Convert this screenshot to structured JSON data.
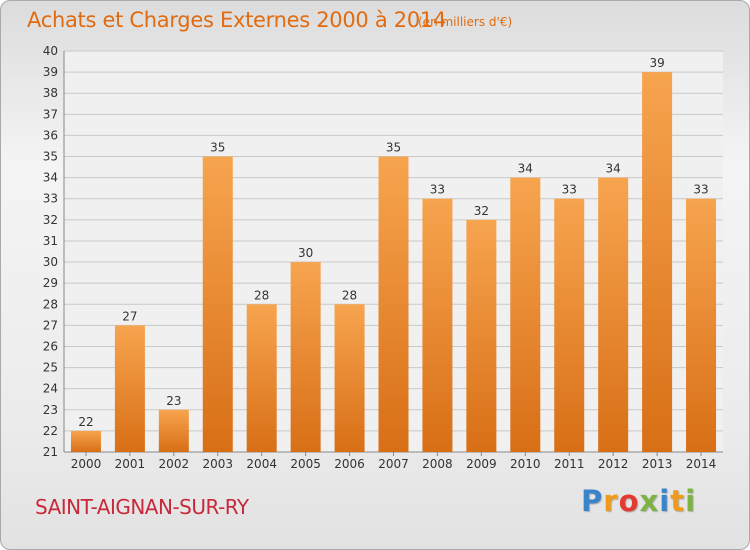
{
  "header": {
    "title": "Achats et Charges Externes 2000 à 2014",
    "unit_note": "(en milliers d'€)"
  },
  "footer": {
    "place": "SAINT-AIGNAN-SUR-RY",
    "brand_letters": [
      "P",
      "r",
      "o",
      "x",
      "i",
      "t",
      "i"
    ],
    "brand_colors": [
      "#3a84c9",
      "#f09a1a",
      "#e33b2f",
      "#7cb342",
      "#3a84c9",
      "#f09a1a",
      "#7cb342"
    ]
  },
  "colors": {
    "bar_light": "#f7a44f",
    "bar_dark": "#d86f16",
    "grid": "#c8c8c8",
    "axis_text": "#333333",
    "label_text": "#333333"
  },
  "chart_data": {
    "type": "bar",
    "title": "Achats et Charges Externes 2000 à 2014",
    "xlabel": "",
    "ylabel": "",
    "categories": [
      "2000",
      "2001",
      "2002",
      "2003",
      "2004",
      "2005",
      "2006",
      "2007",
      "2008",
      "2009",
      "2010",
      "2011",
      "2012",
      "2013",
      "2014"
    ],
    "values": [
      22,
      27,
      23,
      35,
      28,
      30,
      28,
      35,
      33,
      32,
      34,
      33,
      34,
      39,
      33
    ],
    "ylim": [
      21,
      40
    ],
    "yticks": [
      21,
      22,
      23,
      24,
      25,
      26,
      27,
      28,
      29,
      30,
      31,
      32,
      33,
      34,
      35,
      36,
      37,
      38,
      39,
      40
    ],
    "grid": true,
    "legend": "none",
    "data_labels": true
  }
}
